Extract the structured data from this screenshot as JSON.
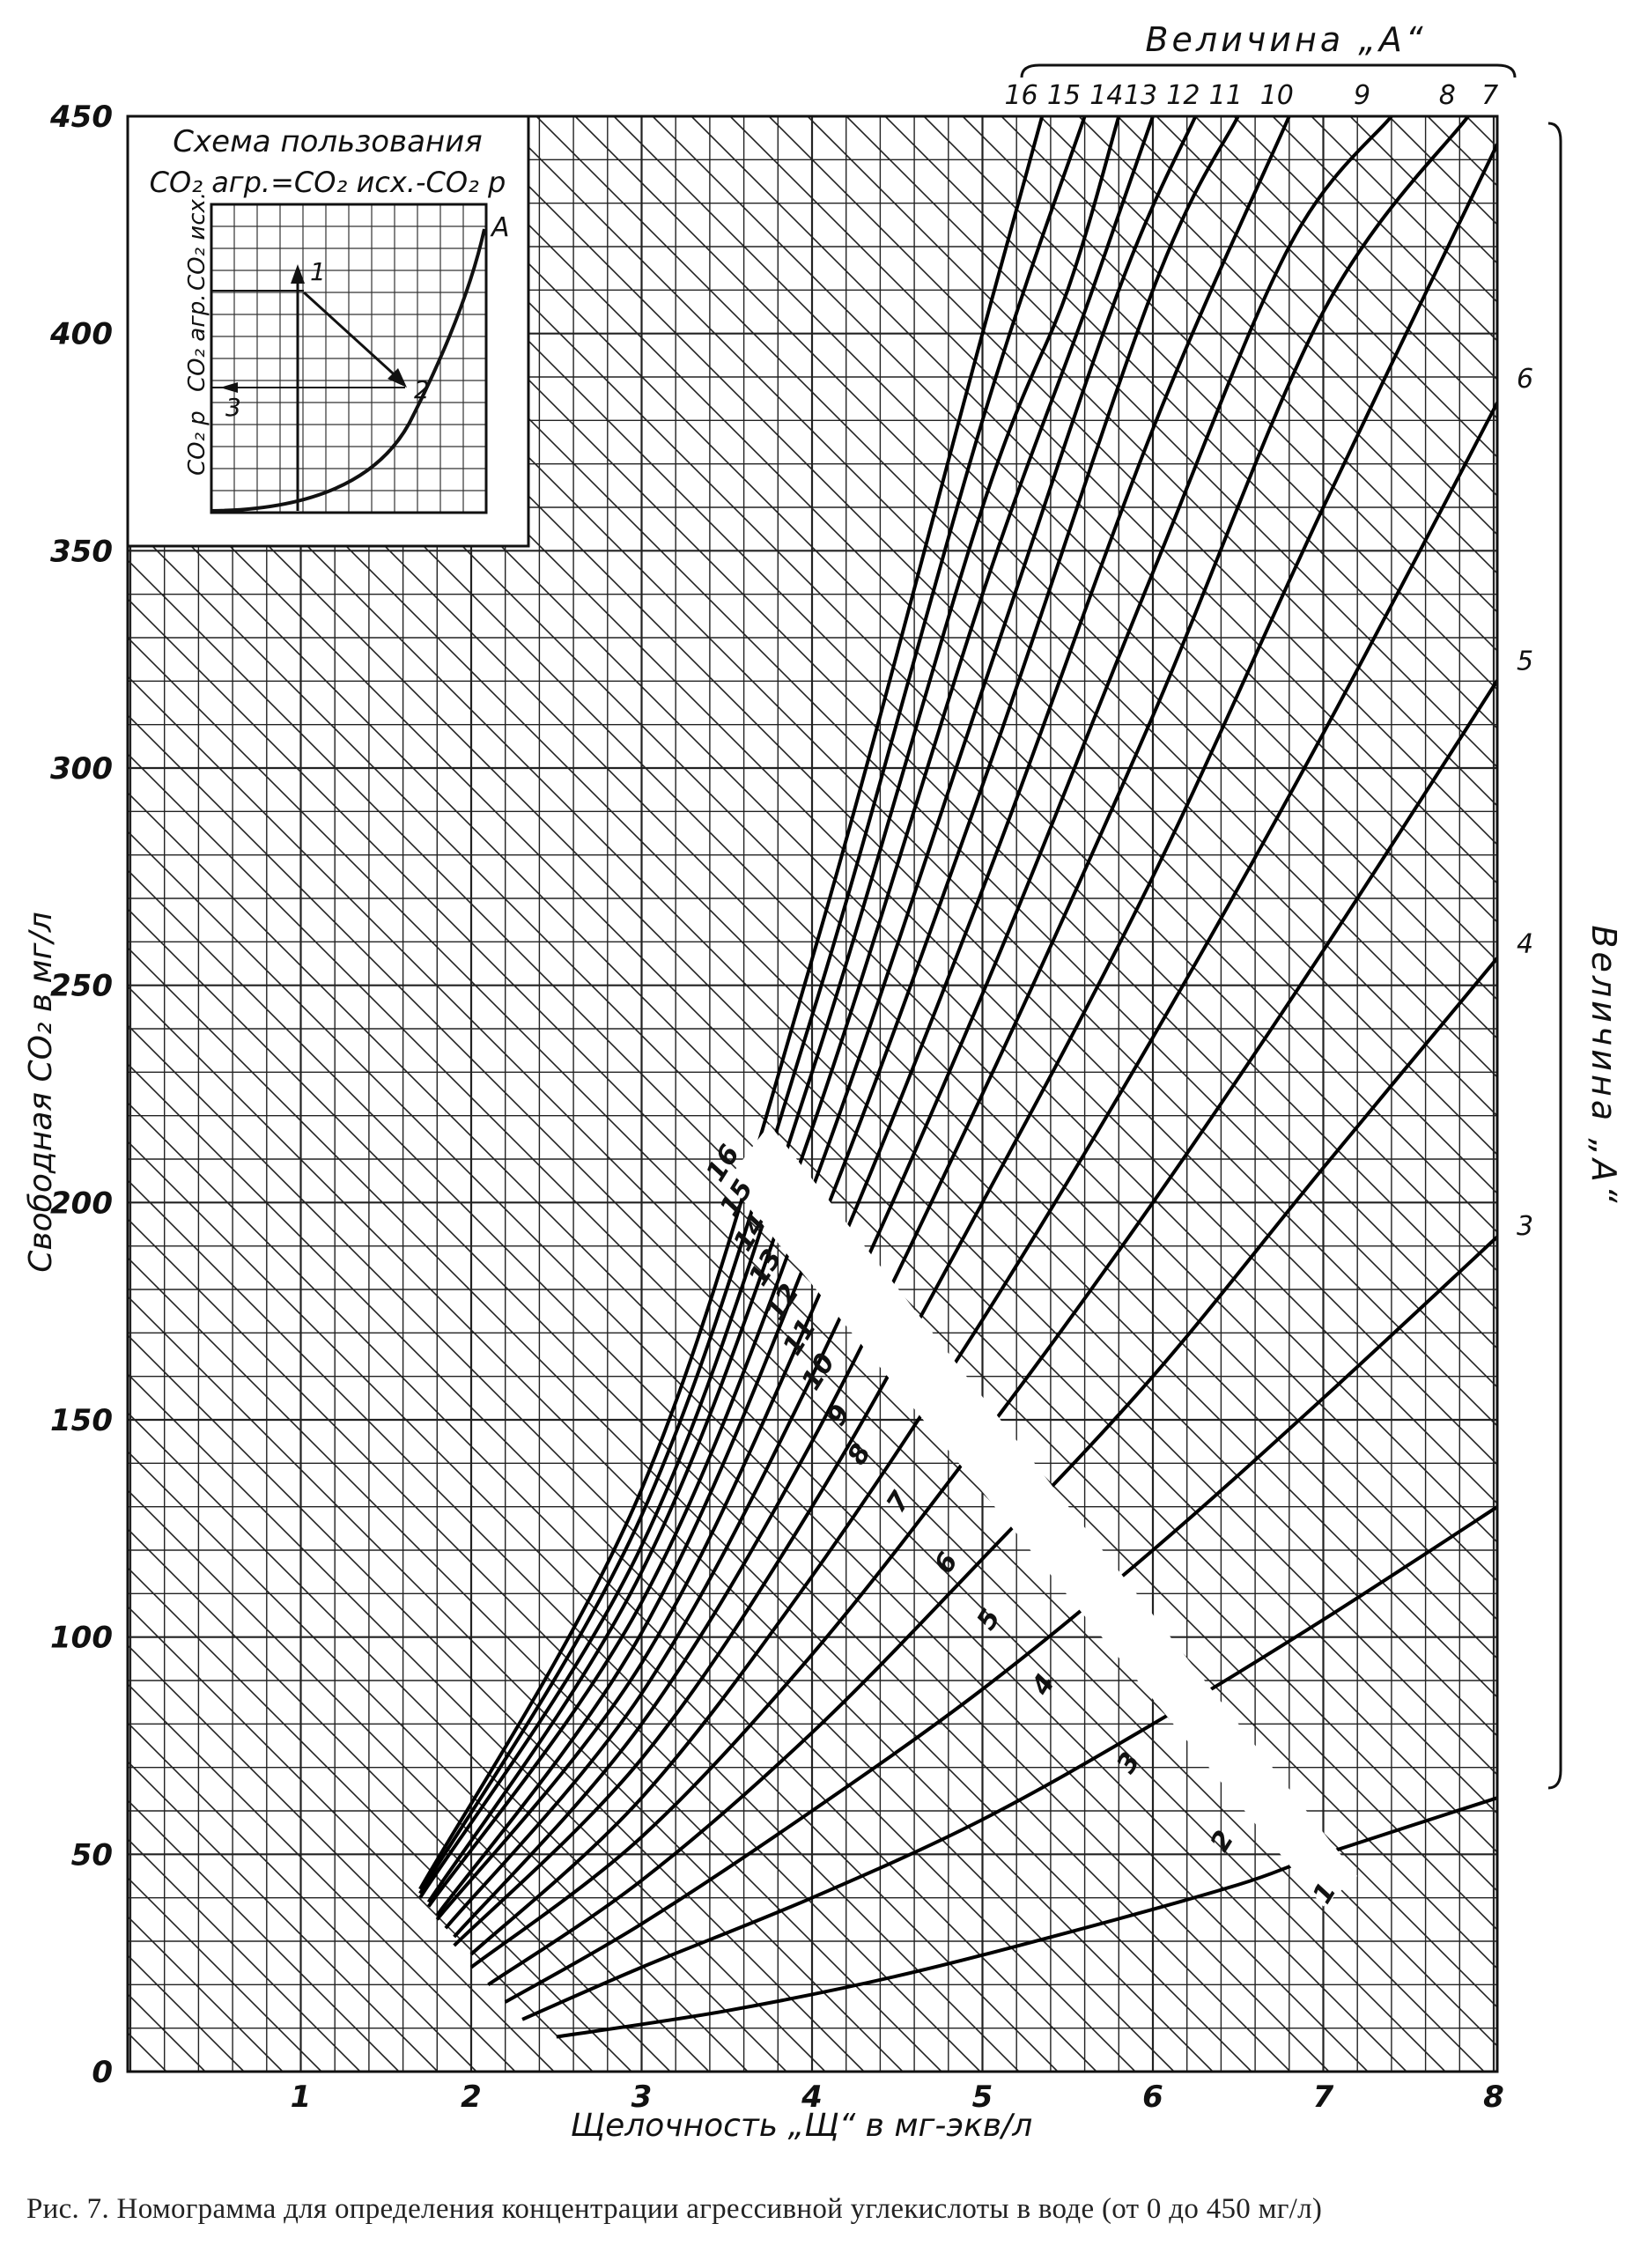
{
  "chart_data": {
    "type": "line",
    "xlabel": "Щелочность „Щ“ в мг-экв/л",
    "ylabel": "Свободная CO₂ в мг/л",
    "xlim": [
      0,
      8.1
    ],
    "ylim": [
      0,
      450
    ],
    "x_ticks": [
      1,
      2,
      3,
      4,
      5,
      6,
      7,
      8
    ],
    "y_ticks": [
      0,
      50,
      100,
      150,
      200,
      250,
      300,
      350,
      400,
      450
    ],
    "grid": true,
    "top_axis_title": "Величина „А“",
    "right_axis_title": "Величина „А“",
    "top_labels": [
      "16",
      "15",
      "14",
      "13",
      "12",
      "11",
      "10",
      "9",
      "8",
      "7"
    ],
    "right_labels": [
      "6",
      "5",
      "4",
      "3"
    ],
    "series_labels_note": "curves labelled 1–16 along the diagonal",
    "series": [
      {
        "name": "1",
        "x": [
          2.5,
          3.5,
          4.5,
          5.5,
          6.5,
          7.0,
          8.1
        ],
        "y": [
          8,
          14,
          22,
          32,
          43,
          50,
          64
        ]
      },
      {
        "name": "2",
        "x": [
          2.3,
          3.0,
          4.0,
          5.0,
          6.0,
          7.0,
          8.1
        ],
        "y": [
          12,
          24,
          40,
          58,
          80,
          104,
          132
        ]
      },
      {
        "name": "3",
        "x": [
          2.2,
          3.0,
          4.0,
          5.0,
          6.0,
          7.0,
          8.1
        ],
        "y": [
          16,
          34,
          60,
          88,
          120,
          155,
          195
        ]
      },
      {
        "name": "4",
        "x": [
          2.1,
          3.0,
          4.0,
          5.0,
          6.0,
          7.0,
          8.1
        ],
        "y": [
          20,
          44,
          78,
          118,
          160,
          208,
          260
        ]
      },
      {
        "name": "5",
        "x": [
          2.0,
          3.0,
          4.0,
          5.0,
          6.0,
          7.0,
          8.1
        ],
        "y": [
          24,
          54,
          96,
          146,
          200,
          258,
          325
        ]
      },
      {
        "name": "6",
        "x": [
          2.0,
          3.0,
          4.0,
          5.0,
          6.0,
          7.0,
          8.1
        ],
        "y": [
          27,
          63,
          114,
          173,
          238,
          308,
          390
        ]
      },
      {
        "name": "7",
        "x": [
          1.9,
          3.0,
          4.0,
          5.0,
          6.0,
          7.0,
          8.1
        ],
        "y": [
          29,
          72,
          130,
          200,
          275,
          360,
          450
        ]
      },
      {
        "name": "8",
        "x": [
          1.9,
          3.0,
          4.0,
          5.0,
          6.0,
          7.0,
          7.85
        ],
        "y": [
          31,
          80,
          145,
          225,
          312,
          405,
          450
        ]
      },
      {
        "name": "9",
        "x": [
          1.85,
          3.0,
          4.0,
          5.0,
          6.0,
          6.8,
          7.4
        ],
        "y": [
          33,
          87,
          160,
          248,
          345,
          420,
          450
        ]
      },
      {
        "name": "10",
        "x": [
          1.8,
          3.0,
          4.0,
          5.0,
          6.0,
          6.8
        ],
        "y": [
          35,
          94,
          175,
          272,
          378,
          450
        ]
      },
      {
        "name": "11",
        "x": [
          1.8,
          3.0,
          4.0,
          5.0,
          6.0,
          6.5
        ],
        "y": [
          36,
          101,
          190,
          296,
          410,
          450
        ]
      },
      {
        "name": "12",
        "x": [
          1.75,
          3.0,
          4.0,
          5.0,
          5.8,
          6.25
        ],
        "y": [
          38,
          108,
          203,
          318,
          410,
          450
        ]
      },
      {
        "name": "13",
        "x": [
          1.75,
          3.0,
          4.0,
          5.0,
          5.6,
          6.0
        ],
        "y": [
          39,
          115,
          217,
          340,
          405,
          450
        ]
      },
      {
        "name": "14",
        "x": [
          1.7,
          3.0,
          4.0,
          5.0,
          5.5,
          5.8
        ],
        "y": [
          40,
          121,
          230,
          360,
          410,
          450
        ]
      },
      {
        "name": "15",
        "x": [
          1.7,
          3.0,
          4.0,
          5.0,
          5.6
        ],
        "y": [
          41,
          128,
          243,
          380,
          450
        ]
      },
      {
        "name": "16",
        "x": [
          1.7,
          3.0,
          4.0,
          5.0,
          5.35
        ],
        "y": [
          42,
          134,
          256,
          400,
          450
        ]
      }
    ]
  },
  "inset": {
    "title": "Схема пользования",
    "formula": "CO₂ агр.=CO₂ исх.-CO₂ р",
    "label_A": "A",
    "point_1": "1",
    "point_2": "2",
    "point_3": "3",
    "axis_label_upper": "CO₂ исх.",
    "axis_label_mid": "CO₂ агр.",
    "axis_label_lower": "CO₂ р"
  },
  "caption": "Рис. 7. Номограмма для определения концентрации агрессивной углекислоты в воде (от 0 до 450 мг/л)"
}
